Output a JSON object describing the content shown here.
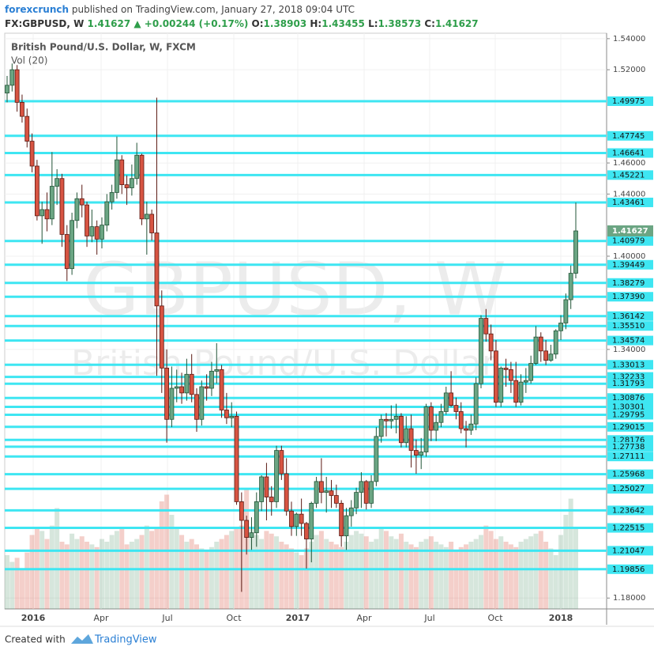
{
  "chart_data": {
    "type": "candlestick",
    "header": {
      "brand": "forexcrunch",
      "published": "published on TradingView.com, January 27, 2018 09:04 UTC",
      "symbol": "FX:GBPUSD, W",
      "price": "1.41627",
      "change": "▲ +0.00244 (+0.17%)",
      "ohlc_text": [
        "O:",
        "1.38903",
        "H:",
        "1.43455",
        "L:",
        "1.38573",
        "C:",
        "1.41627"
      ]
    },
    "title": "British Pound/U.S. Dollar, W, FXCM",
    "subtitle": "Vol (20)",
    "watermark": "GBPUSD, W",
    "watermark_sub": "British Pound/U.S. Dollar",
    "footer": {
      "created": "Created with",
      "brand": "TradingView"
    },
    "x_labels": [
      "2016",
      "Apr",
      "Jul",
      "Oct",
      "2017",
      "Apr",
      "Jul",
      "Oct",
      "2018"
    ],
    "ylim": [
      1.173,
      1.5435
    ],
    "yticks": [
      {
        "value": 1.54,
        "label": "1.54000"
      },
      {
        "value": 1.52,
        "label": "1.52000"
      },
      {
        "value": 1.46,
        "label": "1.46000"
      },
      {
        "value": 1.44,
        "label": "1.44000"
      },
      {
        "value": 1.4,
        "label": "1.40000"
      },
      {
        "value": 1.34,
        "label": "1.34000"
      },
      {
        "value": 1.18,
        "label": "1.18000"
      }
    ],
    "level_color": "#3ee6f2",
    "levels": [
      1.49975,
      1.47745,
      1.46641,
      1.45221,
      1.43461,
      1.40979,
      1.39449,
      1.38279,
      {
        "value": 1.3739,
        "label": "1.37390"
      },
      1.36142,
      {
        "value": 1.3551,
        "label": "1.35510"
      },
      1.34574,
      1.33013,
      1.32233,
      1.31793,
      1.30876,
      1.30301,
      1.29795,
      1.29015,
      1.28176,
      1.27738,
      1.27111,
      1.25968,
      1.25027,
      1.23642,
      1.22515,
      1.21047,
      1.19856
    ],
    "last_price": 1.41627,
    "up_color": "#6ba583",
    "down_color": "#d75442",
    "ohlc": [
      [
        1.505,
        1.516,
        1.499,
        1.51
      ],
      [
        1.51,
        1.524,
        1.506,
        1.52
      ],
      [
        1.52,
        1.523,
        1.493,
        1.499
      ],
      [
        1.499,
        1.504,
        1.486,
        1.49
      ],
      [
        1.49,
        1.495,
        1.47,
        1.474
      ],
      [
        1.474,
        1.479,
        1.454,
        1.458
      ],
      [
        1.458,
        1.462,
        1.423,
        1.426
      ],
      [
        1.426,
        1.435,
        1.408,
        1.43
      ],
      [
        1.43,
        1.441,
        1.416,
        1.424
      ],
      [
        1.424,
        1.467,
        1.42,
        1.445
      ],
      [
        1.445,
        1.456,
        1.433,
        1.45
      ],
      [
        1.45,
        1.453,
        1.406,
        1.414
      ],
      [
        1.414,
        1.42,
        1.384,
        1.392
      ],
      [
        1.392,
        1.428,
        1.388,
        1.423
      ],
      [
        1.423,
        1.441,
        1.418,
        1.437
      ],
      [
        1.437,
        1.446,
        1.425,
        1.433
      ],
      [
        1.433,
        1.435,
        1.406,
        1.413
      ],
      [
        1.413,
        1.43,
        1.409,
        1.419
      ],
      [
        1.419,
        1.423,
        1.401,
        1.411
      ],
      [
        1.411,
        1.425,
        1.405,
        1.42
      ],
      [
        1.42,
        1.44,
        1.416,
        1.435
      ],
      [
        1.435,
        1.446,
        1.43,
        1.441
      ],
      [
        1.441,
        1.477,
        1.437,
        1.462
      ],
      [
        1.462,
        1.465,
        1.44,
        1.446
      ],
      [
        1.446,
        1.452,
        1.433,
        1.444
      ],
      [
        1.444,
        1.459,
        1.439,
        1.45
      ],
      [
        1.45,
        1.473,
        1.446,
        1.465
      ],
      [
        1.465,
        1.466,
        1.42,
        1.424
      ],
      [
        1.424,
        1.435,
        1.401,
        1.427
      ],
      [
        1.427,
        1.43,
        1.41,
        1.415
      ],
      [
        1.415,
        1.502,
        1.323,
        1.368
      ],
      [
        1.368,
        1.378,
        1.312,
        1.328
      ],
      [
        1.328,
        1.34,
        1.28,
        1.295
      ],
      [
        1.295,
        1.329,
        1.29,
        1.315
      ],
      [
        1.315,
        1.327,
        1.306,
        1.316
      ],
      [
        1.316,
        1.325,
        1.305,
        1.312
      ],
      [
        1.312,
        1.334,
        1.307,
        1.324
      ],
      [
        1.324,
        1.337,
        1.306,
        1.311
      ],
      [
        1.311,
        1.315,
        1.287,
        1.295
      ],
      [
        1.295,
        1.32,
        1.291,
        1.316
      ],
      [
        1.316,
        1.324,
        1.307,
        1.315
      ],
      [
        1.315,
        1.332,
        1.31,
        1.326
      ],
      [
        1.326,
        1.344,
        1.318,
        1.327
      ],
      [
        1.327,
        1.33,
        1.296,
        1.301
      ],
      [
        1.301,
        1.312,
        1.292,
        1.296
      ],
      [
        1.296,
        1.306,
        1.29,
        1.297
      ],
      [
        1.297,
        1.3,
        1.24,
        1.242
      ],
      [
        1.242,
        1.248,
        1.184,
        1.23
      ],
      [
        1.23,
        1.233,
        1.208,
        1.219
      ],
      [
        1.219,
        1.232,
        1.211,
        1.222
      ],
      [
        1.222,
        1.248,
        1.213,
        1.242
      ],
      [
        1.242,
        1.259,
        1.236,
        1.258
      ],
      [
        1.258,
        1.267,
        1.23,
        1.245
      ],
      [
        1.245,
        1.252,
        1.233,
        1.242
      ],
      [
        1.242,
        1.278,
        1.238,
        1.275
      ],
      [
        1.275,
        1.278,
        1.256,
        1.26
      ],
      [
        1.26,
        1.27,
        1.233,
        1.236
      ],
      [
        1.236,
        1.242,
        1.22,
        1.226
      ],
      [
        1.226,
        1.235,
        1.22,
        1.234
      ],
      [
        1.234,
        1.244,
        1.22,
        1.228
      ],
      [
        1.228,
        1.229,
        1.199,
        1.218
      ],
      [
        1.218,
        1.242,
        1.203,
        1.241
      ],
      [
        1.241,
        1.258,
        1.238,
        1.255
      ],
      [
        1.255,
        1.27,
        1.241,
        1.248
      ],
      [
        1.248,
        1.258,
        1.235,
        1.249
      ],
      [
        1.249,
        1.256,
        1.238,
        1.246
      ],
      [
        1.246,
        1.253,
        1.238,
        1.241
      ],
      [
        1.241,
        1.243,
        1.213,
        1.22
      ],
      [
        1.22,
        1.238,
        1.211,
        1.233
      ],
      [
        1.233,
        1.243,
        1.226,
        1.238
      ],
      [
        1.238,
        1.251,
        1.234,
        1.248
      ],
      [
        1.248,
        1.261,
        1.238,
        1.255
      ],
      [
        1.255,
        1.256,
        1.237,
        1.241
      ],
      [
        1.241,
        1.259,
        1.238,
        1.255
      ],
      [
        1.255,
        1.29,
        1.252,
        1.284
      ],
      [
        1.284,
        1.298,
        1.28,
        1.295
      ],
      [
        1.295,
        1.299,
        1.284,
        1.294
      ],
      [
        1.294,
        1.304,
        1.289,
        1.295
      ],
      [
        1.295,
        1.305,
        1.286,
        1.297
      ],
      [
        1.297,
        1.299,
        1.277,
        1.28
      ],
      [
        1.28,
        1.297,
        1.277,
        1.289
      ],
      [
        1.289,
        1.298,
        1.264,
        1.275
      ],
      [
        1.275,
        1.282,
        1.26,
        1.272
      ],
      [
        1.272,
        1.283,
        1.263,
        1.274
      ],
      [
        1.274,
        1.305,
        1.271,
        1.303
      ],
      [
        1.303,
        1.306,
        1.281,
        1.288
      ],
      [
        1.288,
        1.298,
        1.281,
        1.293
      ],
      [
        1.293,
        1.305,
        1.29,
        1.3
      ],
      [
        1.3,
        1.316,
        1.298,
        1.312
      ],
      [
        1.312,
        1.326,
        1.303,
        1.304
      ],
      [
        1.304,
        1.309,
        1.295,
        1.3
      ],
      [
        1.3,
        1.306,
        1.286,
        1.289
      ],
      [
        1.289,
        1.294,
        1.277,
        1.288
      ],
      [
        1.288,
        1.298,
        1.285,
        1.292
      ],
      [
        1.292,
        1.322,
        1.288,
        1.318
      ],
      [
        1.318,
        1.362,
        1.315,
        1.36
      ],
      [
        1.36,
        1.366,
        1.345,
        1.35
      ],
      [
        1.35,
        1.356,
        1.333,
        1.339
      ],
      [
        1.339,
        1.346,
        1.303,
        1.306
      ],
      [
        1.306,
        1.329,
        1.303,
        1.328
      ],
      [
        1.328,
        1.334,
        1.316,
        1.327
      ],
      [
        1.327,
        1.332,
        1.312,
        1.32
      ],
      [
        1.32,
        1.332,
        1.303,
        1.306
      ],
      [
        1.306,
        1.324,
        1.304,
        1.319
      ],
      [
        1.319,
        1.328,
        1.312,
        1.32
      ],
      [
        1.32,
        1.336,
        1.318,
        1.331
      ],
      [
        1.331,
        1.355,
        1.33,
        1.348
      ],
      [
        1.348,
        1.351,
        1.332,
        1.339
      ],
      [
        1.339,
        1.346,
        1.33,
        1.333
      ],
      [
        1.333,
        1.343,
        1.332,
        1.337
      ],
      [
        1.337,
        1.353,
        1.334,
        1.352
      ],
      [
        1.352,
        1.362,
        1.346,
        1.357
      ],
      [
        1.357,
        1.376,
        1.353,
        1.372
      ],
      [
        1.372,
        1.394,
        1.366,
        1.389
      ],
      [
        1.38903,
        1.43455,
        1.38573,
        1.41627
      ]
    ],
    "volume": [
      40,
      35,
      38,
      30,
      42,
      55,
      60,
      58,
      52,
      62,
      75,
      50,
      48,
      56,
      52,
      54,
      50,
      48,
      46,
      52,
      50,
      55,
      58,
      60,
      48,
      50,
      52,
      55,
      62,
      58,
      60,
      80,
      85,
      70,
      60,
      55,
      50,
      52,
      48,
      45,
      44,
      46,
      50,
      52,
      55,
      58,
      60,
      62,
      90,
      60,
      55,
      52,
      58,
      56,
      54,
      50,
      48,
      45,
      42,
      40,
      45,
      50,
      55,
      58,
      52,
      50,
      48,
      46,
      50,
      55,
      58,
      56,
      54,
      50,
      52,
      60,
      58,
      54,
      52,
      56,
      50,
      48,
      46,
      50,
      52,
      54,
      50,
      48,
      46,
      50,
      44,
      46,
      48,
      50,
      52,
      55,
      62,
      58,
      52,
      54,
      50,
      48,
      46,
      50,
      52,
      54,
      56,
      58,
      50,
      45,
      40,
      55,
      70,
      82,
      60
    ]
  }
}
